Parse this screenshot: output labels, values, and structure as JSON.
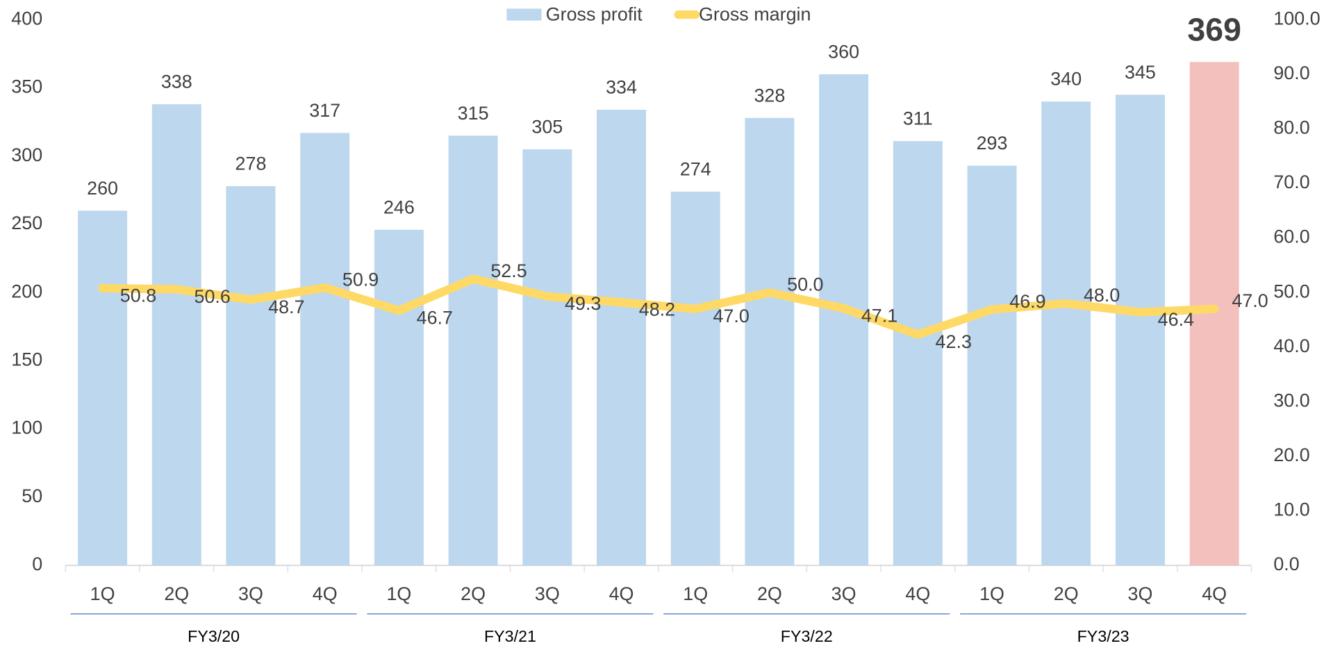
{
  "chart_data": {
    "type": "bar-line",
    "categories": [
      "1Q",
      "2Q",
      "3Q",
      "4Q",
      "1Q",
      "2Q",
      "3Q",
      "4Q",
      "1Q",
      "2Q",
      "3Q",
      "4Q",
      "1Q",
      "2Q",
      "3Q",
      "4Q"
    ],
    "groups": [
      "FY3/20",
      "FY3/21",
      "FY3/22",
      "FY3/23"
    ],
    "series": [
      {
        "name": "Gross profit",
        "type": "bar",
        "color": "#bdd7ee",
        "colors": [
          "#bdd7ee",
          "#bdd7ee",
          "#bdd7ee",
          "#bdd7ee",
          "#bdd7ee",
          "#bdd7ee",
          "#bdd7ee",
          "#bdd7ee",
          "#bdd7ee",
          "#bdd7ee",
          "#bdd7ee",
          "#bdd7ee",
          "#bdd7ee",
          "#bdd7ee",
          "#bdd7ee",
          "#f4c0bd"
        ],
        "values": [
          260,
          338,
          278,
          317,
          246,
          315,
          305,
          334,
          274,
          328,
          360,
          311,
          293,
          340,
          345,
          369
        ]
      },
      {
        "name": "Gross margin",
        "type": "line",
        "axis": "y2",
        "color": "#ffd966",
        "values": [
          50.8,
          50.6,
          48.7,
          50.9,
          46.7,
          52.5,
          49.3,
          48.2,
          47.0,
          50.0,
          47.1,
          42.3,
          46.9,
          48.0,
          46.4,
          47.0
        ],
        "value_labels": [
          "50.8",
          "50.6",
          "48.7",
          "50.9",
          "46.7",
          "52.5",
          "49.3",
          "48.2",
          "47.0",
          "50.0",
          "47.1",
          "42.3",
          "46.9",
          "48.0",
          "46.4",
          "47.0"
        ]
      }
    ],
    "ylim": [
      0,
      400
    ],
    "yticks": [
      0,
      50,
      100,
      150,
      200,
      250,
      300,
      350,
      400
    ],
    "y2lim": [
      0,
      100
    ],
    "y2ticks": [
      {
        "value": 0,
        "label": "0.0"
      },
      {
        "value": 10,
        "label": "10.0"
      },
      {
        "value": 20,
        "label": "20.0"
      },
      {
        "value": 30,
        "label": "30.0"
      },
      {
        "value": 40,
        "label": "40.0"
      },
      {
        "value": 50,
        "label": "50.0"
      },
      {
        "value": 60,
        "label": "60.0"
      },
      {
        "value": 70,
        "label": "70.0"
      },
      {
        "value": 80,
        "label": "80.0"
      },
      {
        "value": 90,
        "label": "90.0"
      },
      {
        "value": 100,
        "label": "100.0"
      }
    ],
    "legend": "top"
  }
}
